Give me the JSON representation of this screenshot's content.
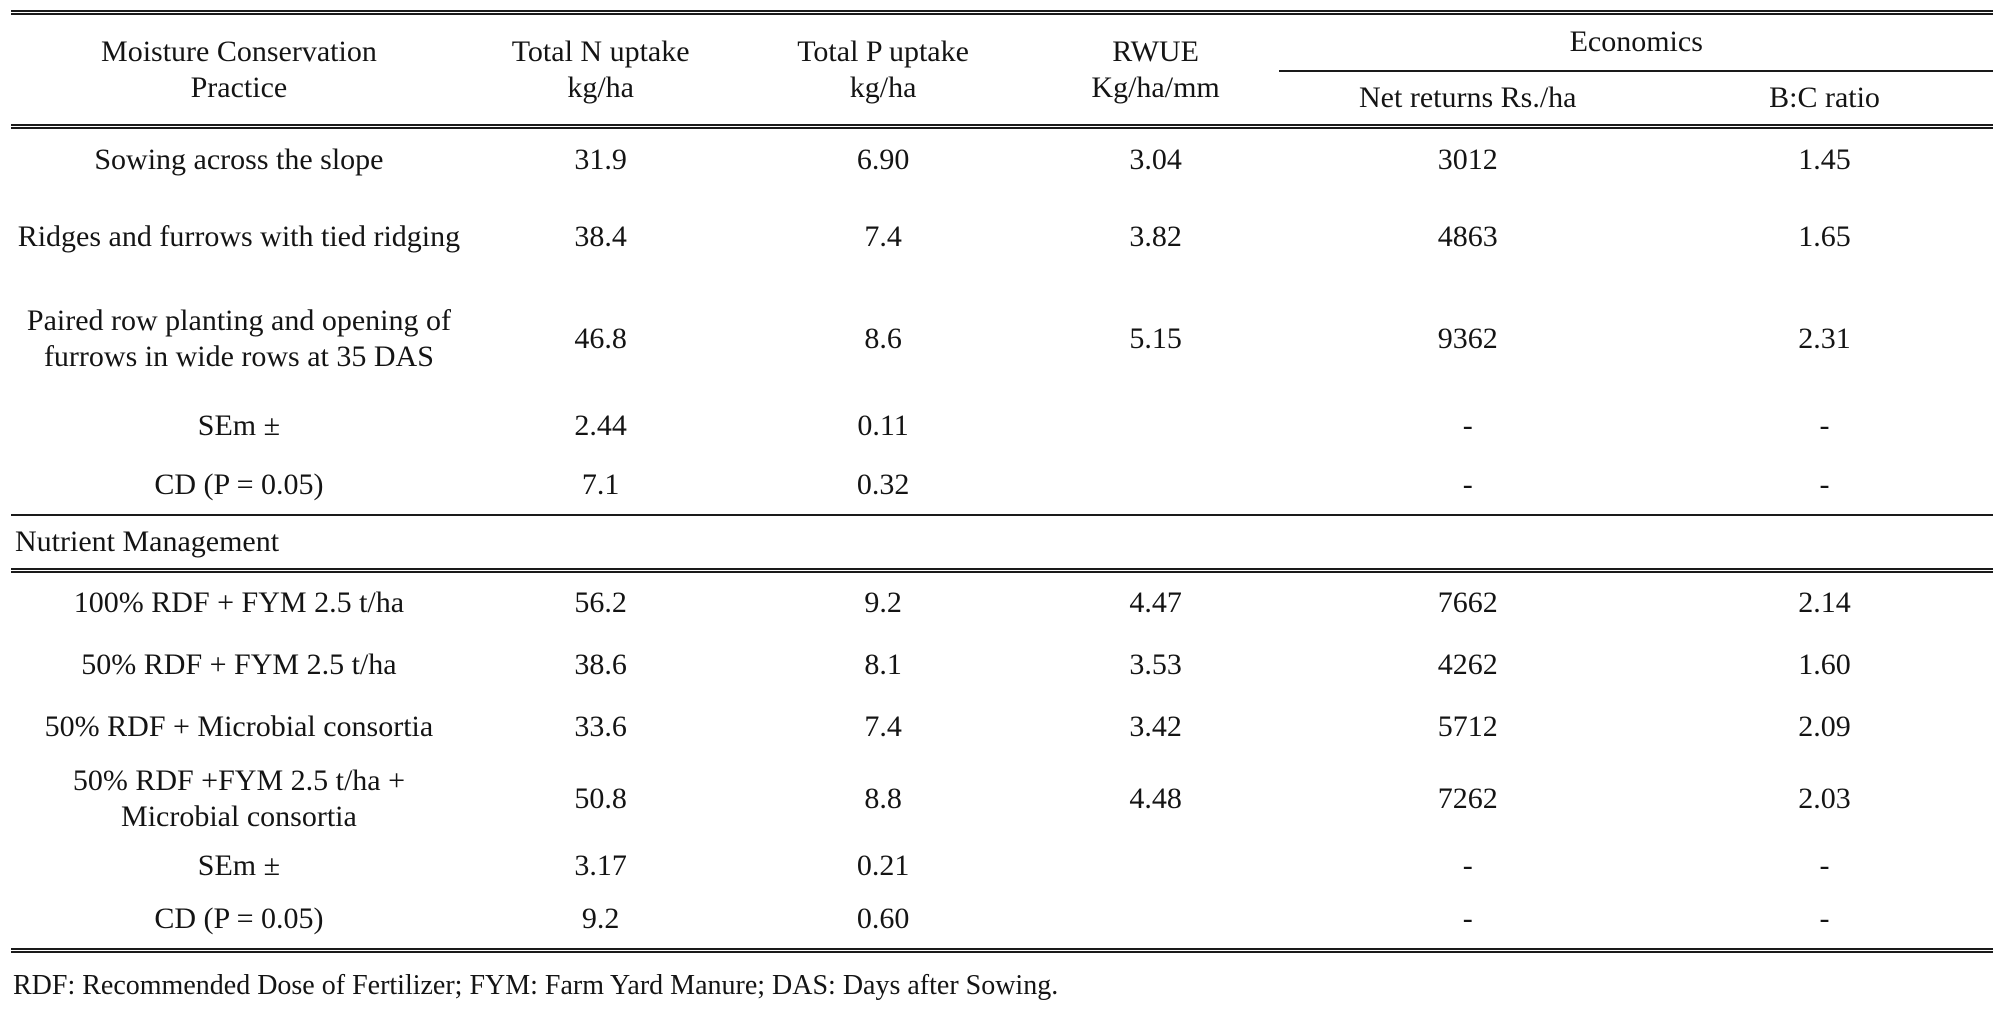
{
  "table": {
    "header": {
      "practice": "Moisture Conservation\nPractice",
      "n_uptake": "Total N uptake\nkg/ha",
      "p_uptake": "Total P uptake\nkg/ha",
      "rwue": "RWUE\nKg/ha/mm",
      "economics": "Economics",
      "net_returns": "Net returns Rs./ha",
      "bc_ratio": "B:C ratio"
    },
    "rows": [
      {
        "type": "data",
        "label": "Sowing across the slope",
        "values": [
          "31.9",
          "6.90",
          "3.04",
          "3012",
          "1.45"
        ]
      },
      {
        "type": "data",
        "label": "Ridges and furrows with tied ridging",
        "values": [
          "38.4",
          "7.4",
          "3.82",
          "4863",
          "1.65"
        ]
      },
      {
        "type": "data",
        "label": "Paired row planting and opening of furrows in wide rows at 35 DAS",
        "values": [
          "46.8",
          "8.6",
          "5.15",
          "9362",
          "2.31"
        ]
      },
      {
        "type": "data",
        "label": "SEm ±",
        "values": [
          "2.44",
          "0.11",
          "",
          "-",
          "-"
        ]
      },
      {
        "type": "data",
        "label": "CD (P = 0.05)",
        "values": [
          "7.1",
          "0.32",
          "",
          "-",
          "-"
        ]
      },
      {
        "type": "section",
        "label": "Nutrient Management"
      },
      {
        "type": "data",
        "label": "100% RDF + FYM 2.5 t/ha",
        "values": [
          "56.2",
          "9.2",
          "4.47",
          "7662",
          "2.14"
        ]
      },
      {
        "type": "data",
        "label": "50% RDF + FYM 2.5 t/ha",
        "values": [
          "38.6",
          "8.1",
          "3.53",
          "4262",
          "1.60"
        ]
      },
      {
        "type": "data",
        "label": "50% RDF + Microbial consortia",
        "values": [
          "33.6",
          "7.4",
          "3.42",
          "5712",
          "2.09"
        ]
      },
      {
        "type": "data",
        "label": "50% RDF +FYM 2.5 t/ha + Microbial consortia",
        "values": [
          "50.8",
          "8.8",
          "4.48",
          "7262",
          "2.03"
        ]
      },
      {
        "type": "data",
        "label": "SEm ±",
        "values": [
          "3.17",
          "0.21",
          "",
          "-",
          "-"
        ]
      },
      {
        "type": "data",
        "label": "CD (P = 0.05)",
        "values": [
          "9.2",
          "0.60",
          "",
          "-",
          "-"
        ]
      }
    ]
  },
  "footnote": "RDF: Recommended Dose of Fertilizer; FYM: Farm Yard Manure; DAS: Days after Sowing."
}
